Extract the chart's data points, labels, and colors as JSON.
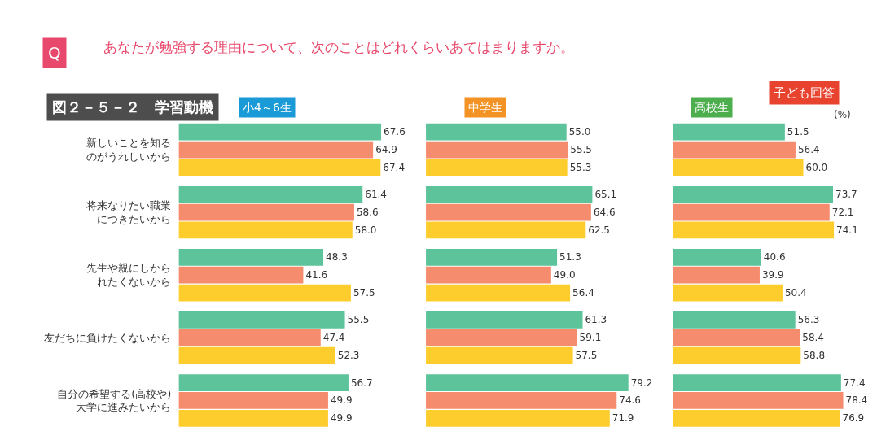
{
  "chart_data": [
    {
      "type": "bar",
      "orientation": "horizontal",
      "title": "小4～6生",
      "subtitle": "図２－５－２　学習動機",
      "annotations": [
        "Q",
        "あなたが勉強する理由について、次のことはどれくらいあてはまりますか。",
        "子ども回答",
        "(%)"
      ],
      "categories": [
        "新しいことを知るのがうれしいから",
        "将来なりたい職業につきたいから",
        "先生や親にしかられたくないから",
        "友だちに負けたくないから",
        "自分の希望する(高校や)大学に進みたいから"
      ],
      "series": [
        {
          "color": "#5cc39a",
          "values": [
            67.6,
            61.4,
            48.3,
            55.5,
            56.7
          ],
          "value_labels": [
            "67.6",
            "61.4",
            "48.3",
            "55.5",
            "56.7"
          ]
        },
        {
          "color": "#f68c6e",
          "values": [
            64.9,
            58.6,
            41.6,
            47.4,
            49.9
          ],
          "value_labels": [
            "64.9",
            "58.6",
            "41.6",
            "47.4",
            "49.9"
          ]
        },
        {
          "color": "#fdcd2e",
          "values": [
            67.4,
            58.0,
            57.5,
            52.3,
            49.9
          ],
          "value_labels": [
            "67.4",
            "58.0",
            "57.5",
            "52.3",
            "49.9"
          ]
        }
      ],
      "tick_labels": "y"
    },
    {
      "type": "bar",
      "orientation": "horizontal",
      "title": "中学生",
      "categories": [
        "新しいことを知るのがうれしいから",
        "将来なりたい職業につきたいから",
        "先生や親にしかられたくないから",
        "友だちに負けたくないから",
        "自分の希望する(高校や)大学に進みたいから"
      ],
      "series": [
        {
          "color": "#5cc39a",
          "values": [
            55.0,
            65.1,
            51.3,
            61.3,
            79.2
          ],
          "value_labels": [
            "55.0",
            "65.1",
            "51.3",
            "61.3",
            "79.2"
          ]
        },
        {
          "color": "#f68c6e",
          "values": [
            55.5,
            64.6,
            49.0,
            59.1,
            74.6
          ],
          "value_labels": [
            "55.5",
            "64.6",
            "49.0",
            "59.1",
            "74.6"
          ]
        },
        {
          "color": "#fdcd2e",
          "values": [
            55.3,
            62.5,
            56.4,
            57.5,
            71.9
          ],
          "value_labels": [
            "55.3",
            "62.5",
            "56.4",
            "57.5",
            "71.9"
          ]
        }
      ],
      "tick_labels": false
    },
    {
      "type": "bar",
      "orientation": "horizontal",
      "title": "高校生",
      "categories": [
        "新しいことを知るのがうれしいから",
        "将来なりたい職業につきたいから",
        "先生や親にしかられたくないから",
        "友だちに負けたくないから",
        "自分の希望する(高校や)大学に進みたいから"
      ],
      "series": [
        {
          "color": "#5cc39a",
          "values": [
            51.5,
            73.7,
            40.6,
            56.3,
            77.4
          ],
          "value_labels": [
            "51.5",
            "73.7",
            "40.6",
            "56.3",
            "77.4"
          ]
        },
        {
          "color": "#f68c6e",
          "values": [
            56.4,
            72.1,
            39.9,
            58.4,
            78.4
          ],
          "value_labels": [
            "56.4",
            "72.1",
            "39.9",
            "58.4",
            "78.4"
          ]
        },
        {
          "color": "#fdcd2e",
          "values": [
            60.0,
            74.1,
            50.4,
            58.8,
            76.9
          ],
          "value_labels": [
            "60.0",
            "74.1",
            "50.4",
            "58.8",
            "76.9"
          ]
        }
      ],
      "tick_labels": false
    }
  ]
}
